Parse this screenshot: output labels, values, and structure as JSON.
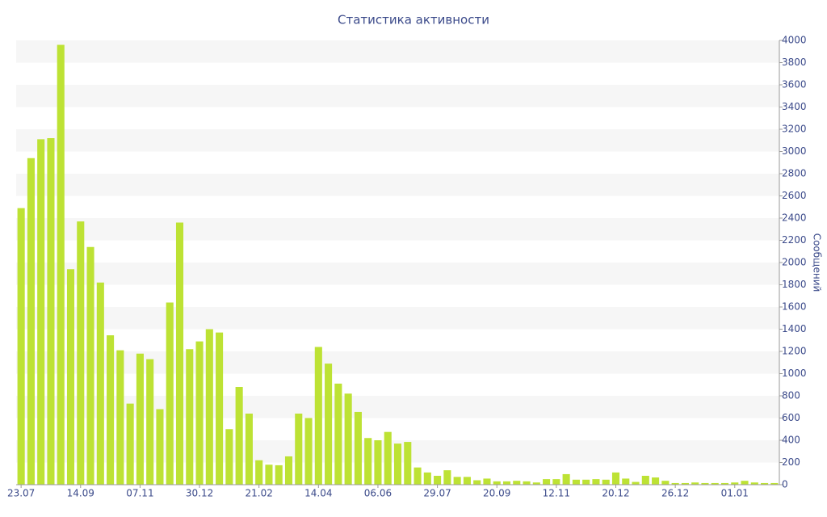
{
  "chart_data": {
    "type": "bar",
    "title": "Статистика активности",
    "y_axis_label": "Сообщений",
    "categories": [
      "23.07",
      null,
      null,
      null,
      null,
      null,
      "14.09",
      null,
      null,
      null,
      null,
      null,
      "07.11",
      null,
      null,
      null,
      null,
      null,
      "30.12",
      null,
      null,
      null,
      null,
      null,
      "21.02",
      null,
      null,
      null,
      null,
      null,
      "14.04",
      null,
      null,
      null,
      null,
      null,
      "06.06",
      null,
      null,
      null,
      null,
      null,
      "29.07",
      null,
      null,
      null,
      null,
      null,
      "20.09",
      null,
      null,
      null,
      null,
      null,
      "12.11",
      null,
      null,
      null,
      null,
      null,
      "20.12",
      null,
      null,
      null,
      null,
      null,
      "26.12",
      null,
      null,
      null,
      null,
      null,
      "01.01",
      null,
      null,
      null,
      null
    ],
    "values": [
      2490,
      2940,
      3110,
      3120,
      3960,
      1940,
      2370,
      2140,
      1820,
      1345,
      1210,
      730,
      1180,
      1130,
      680,
      1640,
      2360,
      1220,
      1290,
      1400,
      1370,
      500,
      880,
      640,
      220,
      180,
      175,
      255,
      640,
      600,
      1240,
      1090,
      910,
      820,
      655,
      420,
      400,
      475,
      370,
      385,
      155,
      110,
      80,
      130,
      70,
      70,
      40,
      55,
      30,
      30,
      35,
      30,
      20,
      50,
      50,
      95,
      45,
      45,
      50,
      45,
      110,
      55,
      25,
      80,
      65,
      35,
      15,
      15,
      20,
      15,
      15,
      15,
      20,
      35,
      20,
      15,
      15
    ],
    "color": "#bde234",
    "ylim": [
      0,
      4000
    ],
    "yticks": [
      0,
      200,
      400,
      600,
      800,
      1000,
      1200,
      1400,
      1600,
      1800,
      2000,
      2200,
      2400,
      2600,
      2800,
      3000,
      3200,
      3400,
      3600,
      3800,
      4000
    ],
    "grid": true
  }
}
